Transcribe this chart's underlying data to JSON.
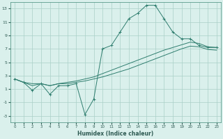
{
  "xlabel": "Humidex (Indice chaleur)",
  "bg_color": "#daf0ec",
  "line_color": "#2e7d6e",
  "grid_color": "#aacfc8",
  "xlim": [
    -0.5,
    23.5
  ],
  "ylim": [
    -4,
    14
  ],
  "xticks": [
    0,
    1,
    2,
    3,
    4,
    5,
    6,
    7,
    8,
    9,
    10,
    11,
    12,
    13,
    14,
    15,
    16,
    17,
    18,
    19,
    20,
    21,
    22,
    23
  ],
  "yticks": [
    -3,
    -1,
    1,
    3,
    5,
    7,
    9,
    11,
    13
  ],
  "series": [
    {
      "x": [
        0,
        1,
        2,
        3,
        4,
        5,
        6,
        7,
        8,
        9,
        10,
        11,
        12,
        13,
        14,
        15,
        16,
        17,
        18,
        19,
        20,
        21,
        22,
        23
      ],
      "y": [
        2.5,
        2.0,
        1.8,
        1.8,
        1.5,
        1.8,
        2.0,
        2.2,
        2.5,
        2.8,
        3.3,
        3.8,
        4.3,
        4.8,
        5.3,
        5.8,
        6.3,
        6.8,
        7.2,
        7.6,
        8.0,
        7.8,
        7.3,
        7.2
      ],
      "markers": false
    },
    {
      "x": [
        0,
        1,
        2,
        3,
        4,
        5,
        6,
        7,
        8,
        9,
        10,
        11,
        12,
        13,
        14,
        15,
        16,
        17,
        18,
        19,
        20,
        21,
        22,
        23
      ],
      "y": [
        2.5,
        2.0,
        1.5,
        1.8,
        1.5,
        1.8,
        1.8,
        2.0,
        2.2,
        2.5,
        2.8,
        3.2,
        3.6,
        4.0,
        4.5,
        5.0,
        5.5,
        6.0,
        6.5,
        7.0,
        7.4,
        7.3,
        6.9,
        6.8
      ],
      "markers": false
    },
    {
      "x": [
        0,
        1,
        2,
        3,
        4,
        5,
        6,
        7,
        8,
        9,
        10,
        11,
        12,
        13,
        14,
        15,
        16,
        17,
        18,
        19,
        20,
        21,
        22,
        23
      ],
      "y": [
        2.5,
        2.0,
        0.8,
        1.8,
        0.2,
        1.5,
        1.5,
        1.8,
        -2.8,
        -0.5,
        7.0,
        7.5,
        9.5,
        11.5,
        12.3,
        13.5,
        13.5,
        11.5,
        9.5,
        8.5,
        8.5,
        7.5,
        7.2,
        7.2
      ],
      "markers": true
    }
  ]
}
